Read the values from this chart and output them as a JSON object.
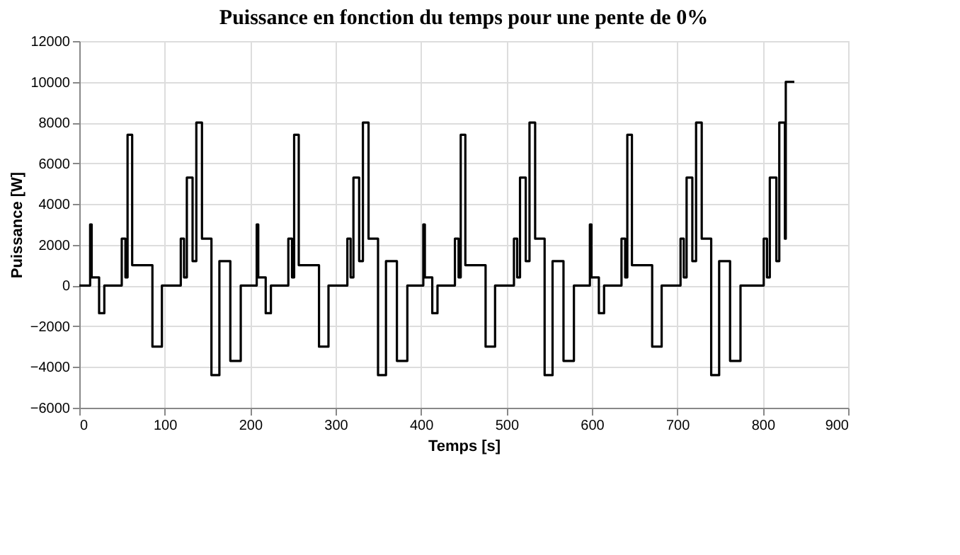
{
  "chart_data": {
    "type": "line",
    "title": "Puissance en fonction du temps pour une pente de 0%",
    "xlabel": "Temps [s]",
    "ylabel": "Puissance [W]",
    "xlim": [
      0,
      900
    ],
    "xticks": [
      0,
      100,
      200,
      300,
      400,
      500,
      600,
      700,
      800,
      900
    ],
    "ylim": [
      -6000,
      12000
    ],
    "yticks": [
      -6000,
      -4000,
      -2000,
      0,
      2000,
      4000,
      6000,
      8000,
      10000,
      12000
    ],
    "grid": true,
    "legend": false,
    "marker": "none",
    "line_style": "solid",
    "series": [
      {
        "color": "#000000",
        "x": [
          0,
          12.7,
          12.7,
          14.5,
          14.5,
          23.2,
          23.2,
          29.3,
          29.3,
          49.7,
          49.7,
          54,
          54,
          56.5,
          56.5,
          61.9,
          61.9,
          85.6,
          85.6,
          96.7,
          96.7,
          118.8,
          118.8,
          122.6,
          122.6,
          125.9,
          125.9,
          132.6,
          132.6,
          137,
          137,
          143.6,
          143.6,
          154.7,
          154.7,
          164,
          164,
          176.8,
          176.8,
          189,
          189,
          195,
          207.7,
          207.7,
          209.5,
          209.5,
          218.2,
          218.2,
          224.3,
          224.3,
          244.7,
          244.7,
          249,
          249,
          251.5,
          251.5,
          256.9,
          256.9,
          280.6,
          280.6,
          291.7,
          291.7,
          313.8,
          313.8,
          317.6,
          317.6,
          320.9,
          320.9,
          327.6,
          327.6,
          332,
          332,
          338.6,
          338.6,
          349.7,
          349.7,
          359,
          359,
          371.8,
          371.8,
          384,
          384,
          390,
          402.7,
          402.7,
          404.5,
          404.5,
          413.2,
          413.2,
          419.3,
          419.3,
          439.7,
          439.7,
          444,
          444,
          446.5,
          446.5,
          451.9,
          451.9,
          475.6,
          475.6,
          486.7,
          486.7,
          508.8,
          508.8,
          512.6,
          512.6,
          515.9,
          515.9,
          522.6,
          522.6,
          527,
          527,
          533.6,
          533.6,
          544.7,
          544.7,
          554,
          554,
          566.8,
          566.8,
          579,
          579,
          585,
          597.7,
          597.7,
          599.5,
          599.5,
          608.2,
          608.2,
          614.3,
          614.3,
          634.7,
          634.7,
          639,
          639,
          641.5,
          641.5,
          646.9,
          646.9,
          670.6,
          670.6,
          681.7,
          681.7,
          703.8,
          703.8,
          707.6,
          707.6,
          710.9,
          710.9,
          717.6,
          717.6,
          722,
          722,
          728.6,
          728.6,
          739.7,
          739.7,
          749,
          749,
          761.8,
          761.8,
          774,
          774,
          801.2,
          801.2,
          805,
          805,
          808.3,
          808.3,
          816,
          816,
          819.4,
          819.4,
          826,
          826,
          827,
          827,
          837
        ],
        "values": [
          0,
          0,
          3000,
          3000,
          400,
          400,
          -1360,
          -1360,
          0,
          0,
          2300,
          2300,
          400,
          400,
          7400,
          7400,
          1000,
          1000,
          -3000,
          -3000,
          0,
          0,
          2300,
          2300,
          400,
          400,
          5300,
          5300,
          1200,
          1200,
          8000,
          8000,
          2300,
          2300,
          -4400,
          -4400,
          1200,
          1200,
          -3700,
          -3700,
          0,
          0,
          0,
          3000,
          3000,
          400,
          400,
          -1360,
          -1360,
          0,
          0,
          2300,
          2300,
          400,
          400,
          7400,
          7400,
          1000,
          1000,
          -3000,
          -3000,
          0,
          0,
          2300,
          2300,
          400,
          400,
          5300,
          5300,
          1200,
          1200,
          8000,
          8000,
          2300,
          2300,
          -4400,
          -4400,
          1200,
          1200,
          -3700,
          -3700,
          0,
          0,
          0,
          3000,
          3000,
          400,
          400,
          -1360,
          -1360,
          0,
          0,
          2300,
          2300,
          400,
          400,
          7400,
          7400,
          1000,
          1000,
          -3000,
          -3000,
          0,
          0,
          2300,
          2300,
          400,
          400,
          5300,
          5300,
          1200,
          1200,
          8000,
          8000,
          2300,
          2300,
          -4400,
          -4400,
          1200,
          1200,
          -3700,
          -3700,
          0,
          0,
          0,
          3000,
          3000,
          400,
          400,
          -1360,
          -1360,
          0,
          0,
          2300,
          2300,
          400,
          400,
          7400,
          7400,
          1000,
          1000,
          -3000,
          -3000,
          0,
          0,
          2300,
          2300,
          400,
          400,
          5300,
          5300,
          1200,
          1200,
          8000,
          8000,
          2300,
          2300,
          -4400,
          -4400,
          1200,
          1200,
          -3700,
          -3700,
          0,
          0,
          2300,
          2300,
          400,
          400,
          5300,
          5300,
          1200,
          1200,
          8000,
          8000,
          2300,
          2300,
          10000,
          10000
        ]
      }
    ]
  }
}
